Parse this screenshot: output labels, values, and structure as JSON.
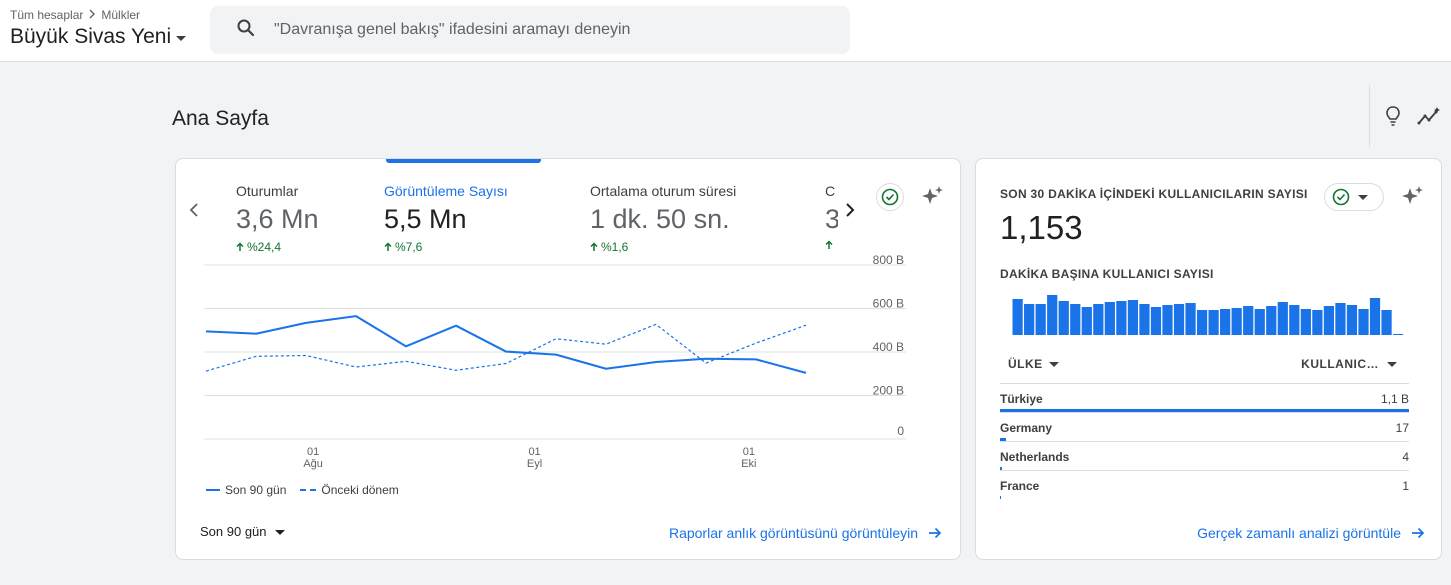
{
  "breadcrumb": {
    "accounts": "Tüm hesaplar",
    "properties": "Mülkler"
  },
  "property_name": "Büyük Sivas Yeni",
  "search": {
    "placeholder": "\"Davranışa genel bakış\" ifadesini aramayı deneyin"
  },
  "page_title": "Ana Sayfa",
  "colors": {
    "accent": "#1a73e8",
    "positive": "#137333",
    "border": "#dadce0"
  },
  "icons": [
    "search-icon",
    "lightbulb-icon",
    "insights-icon",
    "chevron-left-icon",
    "chevron-right-icon",
    "check-circle-icon",
    "sparkle-icon",
    "arrow-right-icon",
    "caret-down-icon"
  ],
  "main_card": {
    "metrics": [
      {
        "label": "Oturumlar",
        "value": "3,6 Mn",
        "delta": "%24,4",
        "active": false
      },
      {
        "label": "Görüntüleme Sayısı",
        "value": "5,5 Mn",
        "delta": "%7,6",
        "active": true
      },
      {
        "label": "Ortalama oturum süresi",
        "value": "1 dk. 50 sn.",
        "delta": "%1,6",
        "active": false
      },
      {
        "label": "C",
        "value": "3",
        "delta": "",
        "active": false
      }
    ],
    "period": "Son 90 gün",
    "link": "Raporlar anlık görüntüsünü görüntüleyin"
  },
  "chart_data": {
    "type": "line",
    "x": [
      "07-17",
      "07-24",
      "07-31",
      "08-07",
      "08-14",
      "08-21",
      "08-28",
      "09-04",
      "09-11",
      "09-18",
      "09-25",
      "10-02",
      "10-09"
    ],
    "x_ticks": [
      {
        "day": "01",
        "month": "Ağu",
        "x": "08-01"
      },
      {
        "day": "01",
        "month": "Eyl",
        "x": "09-01"
      },
      {
        "day": "01",
        "month": "Eki",
        "x": "10-01"
      }
    ],
    "y_ticks": [
      "0",
      "200 B",
      "400 B",
      "600 B",
      "800 B"
    ],
    "ylim": [
      0,
      800
    ],
    "series": [
      {
        "name": "Son 90 gün",
        "style": "solid",
        "values": [
          495,
          484,
          534,
          565,
          426,
          521,
          402,
          388,
          323,
          354,
          369,
          366,
          304
        ]
      },
      {
        "name": "Önceki dönem",
        "style": "dashed",
        "values": [
          312,
          380,
          384,
          331,
          357,
          316,
          347,
          461,
          436,
          527,
          349,
          441,
          523
        ]
      }
    ],
    "grid": true
  },
  "realtime": {
    "title": "SON 30 DAKİKA İÇİNDEKİ KULLANICILARIN SAYISI",
    "value": "1,153",
    "sub_title": "DAKİKA BAŞINA KULLANICI SAYISI",
    "per_minute": [
      36,
      31,
      31,
      40,
      34,
      31,
      28,
      31,
      33,
      34,
      35,
      31,
      28,
      30,
      31,
      32,
      25,
      25,
      26,
      27,
      29,
      26,
      29,
      33,
      30,
      26,
      25,
      29,
      32,
      30,
      26,
      37,
      25,
      1
    ],
    "columns": {
      "country": "ÜLKE",
      "users": "KULLANIC…"
    },
    "rows": [
      {
        "country": "Türkiye",
        "count": "1,1 B",
        "share": 1.0
      },
      {
        "country": "Germany",
        "count": "17",
        "share": 0.015
      },
      {
        "country": "Netherlands",
        "count": "4",
        "share": 0.004
      },
      {
        "country": "France",
        "count": "1",
        "share": 0.001
      }
    ],
    "link": "Gerçek zamanlı analizi görüntüle"
  }
}
